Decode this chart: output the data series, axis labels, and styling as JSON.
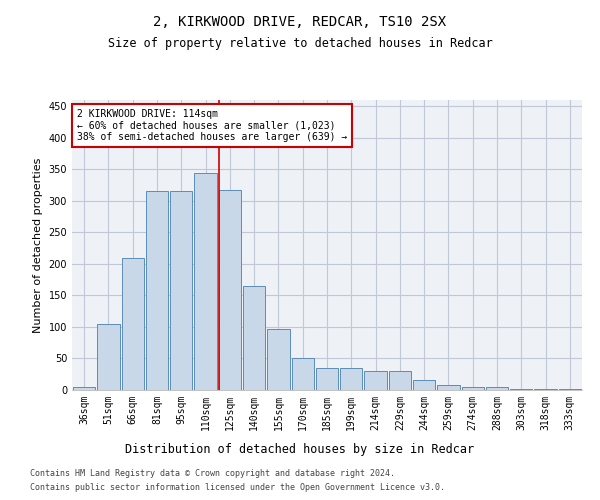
{
  "title1": "2, KIRKWOOD DRIVE, REDCAR, TS10 2SX",
  "title2": "Size of property relative to detached houses in Redcar",
  "xlabel": "Distribution of detached houses by size in Redcar",
  "ylabel": "Number of detached properties",
  "footer1": "Contains HM Land Registry data © Crown copyright and database right 2024.",
  "footer2": "Contains public sector information licensed under the Open Government Licence v3.0.",
  "annotation_line1": "2 KIRKWOOD DRIVE: 114sqm",
  "annotation_line2": "← 60% of detached houses are smaller (1,023)",
  "annotation_line3": "38% of semi-detached houses are larger (639) →",
  "bar_color": "#c8d8e8",
  "bar_edge_color": "#5b8db8",
  "grid_color": "#c0c8d8",
  "vline_color": "#cc0000",
  "annotation_box_color": "#cc0000",
  "categories": [
    "36sqm",
    "51sqm",
    "66sqm",
    "81sqm",
    "95sqm",
    "110sqm",
    "125sqm",
    "140sqm",
    "155sqm",
    "170sqm",
    "185sqm",
    "199sqm",
    "214sqm",
    "229sqm",
    "244sqm",
    "259sqm",
    "274sqm",
    "288sqm",
    "303sqm",
    "318sqm",
    "333sqm"
  ],
  "values": [
    5,
    105,
    210,
    315,
    315,
    345,
    318,
    165,
    97,
    50,
    35,
    35,
    30,
    30,
    16,
    8,
    5,
    5,
    2,
    1,
    1
  ],
  "vline_x": 5.55,
  "ylim": [
    0,
    460
  ],
  "yticks": [
    0,
    50,
    100,
    150,
    200,
    250,
    300,
    350,
    400,
    450
  ],
  "background_color": "#eef2f7",
  "title1_fontsize": 10,
  "title2_fontsize": 8.5,
  "ylabel_fontsize": 8,
  "xlabel_fontsize": 8.5,
  "tick_fontsize": 7,
  "footer_fontsize": 6,
  "annotation_fontsize": 7
}
